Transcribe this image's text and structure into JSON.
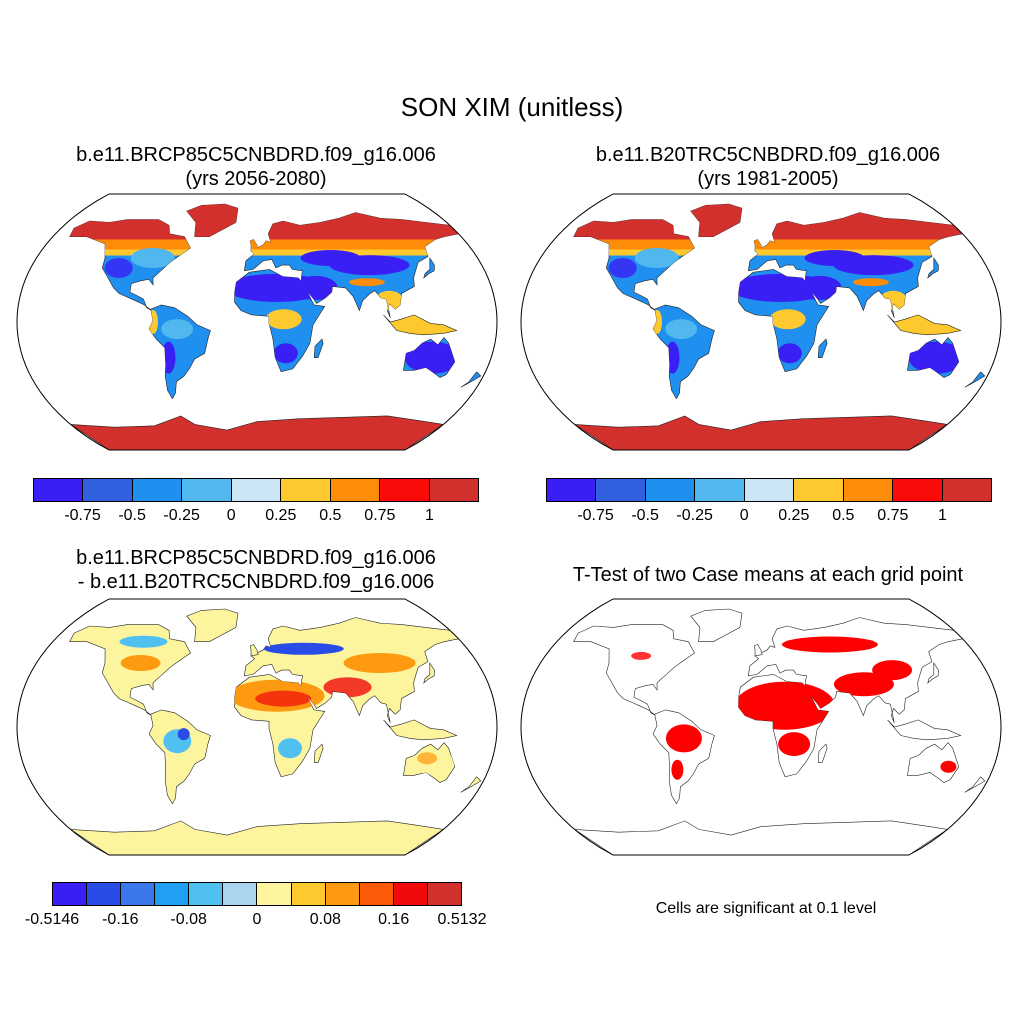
{
  "figure": {
    "title": "SON XIM (unitless)"
  },
  "panels": {
    "top_left": {
      "title_line1": "b.e11.BRCP85C5CNBDRD.f09_g16.006",
      "title_line2": "(yrs 2056-2080)"
    },
    "top_right": {
      "title_line1": "b.e11.B20TRC5CNBDRD.f09_g16.006",
      "title_line2": "(yrs 1981-2005)"
    },
    "bottom_left": {
      "title_line1": "b.e11.BRCP85C5CNBDRD.f09_g16.006",
      "title_line2": "- b.e11.B20TRC5CNBDRD.f09_g16.006"
    },
    "bottom_right": {
      "title": "T-Test of two Case means at each grid point",
      "note": "Cells are significant at 0.1 level",
      "significance_color": "#ff0000"
    }
  },
  "colorbars": {
    "abs": {
      "colors": [
        "#3a1ff5",
        "#3060e0",
        "#1f8ff0",
        "#50b8ee",
        "#cce6f6",
        "#fdc92e",
        "#fd8c08",
        "#fb0a0a",
        "#d2302c"
      ],
      "labels": [
        "-0.75",
        "-0.5",
        "-0.25",
        "0",
        "0.25",
        "0.5",
        "0.75",
        "1"
      ]
    },
    "diff": {
      "colors": [
        "#3a1ff5",
        "#2a4ce6",
        "#3a78ec",
        "#1fa0f2",
        "#50c0f0",
        "#a9d6ee",
        "#fdf59e",
        "#fdc92e",
        "#fd9a10",
        "#fb5a06",
        "#f00a0a",
        "#d2302c"
      ],
      "labels": [
        "-0.5146",
        "-0.16",
        "-0.08",
        "0",
        "0.08",
        "0.16",
        "0.5132"
      ],
      "label_positions": [
        0,
        2,
        4,
        6,
        8,
        10,
        12
      ]
    }
  },
  "map_colors": {
    "ocean": "#ffffff",
    "polar": "#d2302c",
    "desert": "#3a1ff5",
    "moist": "#1f8ff0",
    "humid": "#50b8ee",
    "tropic": "#fdc92e",
    "boreal": "#fd8c08",
    "diff_neutral": "#fdf59e",
    "diff_warm": "#fd9a10",
    "diff_hot": "#f00a0a",
    "diff_cool": "#50c0f0",
    "diff_cold": "#2a4ce6"
  }
}
